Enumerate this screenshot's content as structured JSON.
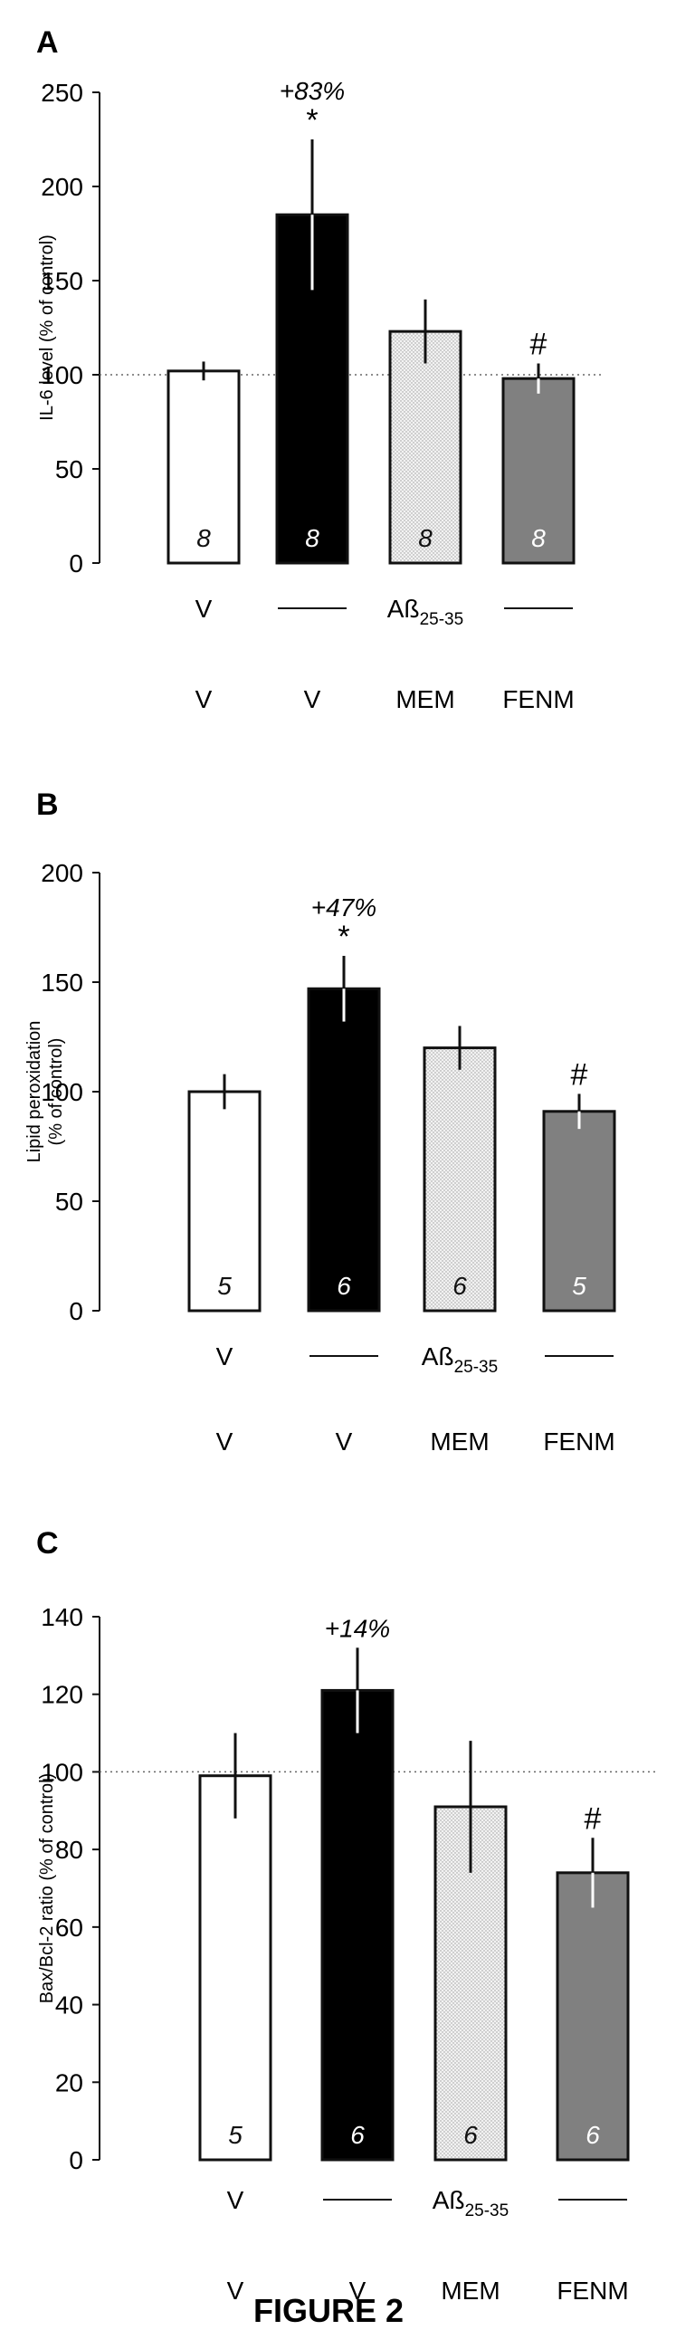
{
  "figure_title": "FIGURE 2",
  "colors": {
    "V": "#ffffff",
    "V_abeta": "#000000",
    "MEM": "#e4e4e4",
    "FENM": "#808080"
  },
  "chart_data": [
    {
      "panel": "A",
      "type": "bar",
      "ylabel": "IL-6 level (% of control)",
      "ylim": [
        0,
        250
      ],
      "yticks": [
        0,
        50,
        100,
        150,
        200,
        250
      ],
      "reference_line": 100,
      "categories": [
        "V",
        "V",
        "MEM",
        "FENM"
      ],
      "values": [
        102,
        185,
        123,
        98
      ],
      "errors": [
        5,
        40,
        17,
        8
      ],
      "n": [
        "8",
        "8",
        "8",
        "8"
      ],
      "annotations": [
        "",
        "+83%",
        "",
        ""
      ],
      "significance": [
        "",
        "*",
        "",
        "#"
      ],
      "row1": [
        "V",
        "",
        "Aß25-35",
        ""
      ],
      "treatment_label": "Aß",
      "treatment_sub": "25-35"
    },
    {
      "panel": "B",
      "type": "bar",
      "ylabel": "Lipid peroxidation (% of control)",
      "ylim": [
        0,
        200
      ],
      "yticks": [
        0,
        50,
        100,
        150,
        200
      ],
      "reference_line": null,
      "categories": [
        "V",
        "V",
        "MEM",
        "FENM"
      ],
      "values": [
        100,
        147,
        120,
        91
      ],
      "errors": [
        8,
        15,
        10,
        8
      ],
      "n": [
        "5",
        "6",
        "6",
        "5"
      ],
      "annotations": [
        "",
        "+47%",
        "",
        ""
      ],
      "significance": [
        "",
        "*",
        "",
        "#"
      ],
      "treatment_label": "Aß",
      "treatment_sub": "25-35"
    },
    {
      "panel": "C",
      "type": "bar",
      "ylabel": "Bax/Bcl-2 ratio (% of control)",
      "ylim": [
        0,
        140
      ],
      "yticks": [
        0,
        20,
        40,
        60,
        80,
        100,
        120,
        140
      ],
      "reference_line": 100,
      "categories": [
        "V",
        "V",
        "MEM",
        "FENM"
      ],
      "values": [
        99,
        121,
        91,
        74
      ],
      "errors": [
        11,
        11,
        17,
        9
      ],
      "n": [
        "5",
        "6",
        "6",
        "6"
      ],
      "annotations": [
        "",
        "+14%",
        "",
        ""
      ],
      "significance": [
        "",
        "",
        "",
        "#"
      ],
      "treatment_label": "Aß",
      "treatment_sub": "25-35"
    }
  ]
}
